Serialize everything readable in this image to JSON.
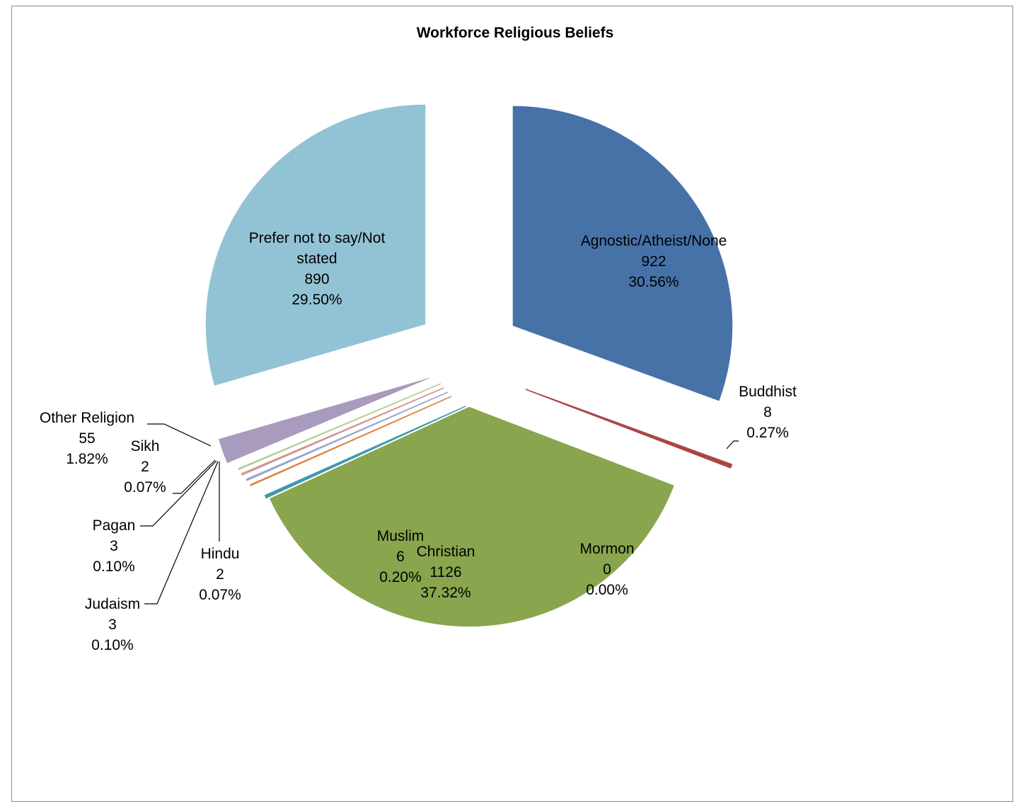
{
  "chart_data": {
    "type": "pie",
    "title": "Workforce Religious Beliefs",
    "exploded": true,
    "slices": [
      {
        "label": "Agnostic/Atheist/None",
        "value": 922,
        "percent": "30.56%",
        "color": "#4672A8"
      },
      {
        "label": "Buddhist",
        "value": 8,
        "percent": "0.27%",
        "color": "#AA4644"
      },
      {
        "label": "Mormon",
        "value": 0,
        "percent": "0.00%",
        "color": "#8064A1"
      },
      {
        "label": "Christian",
        "value": 1126,
        "percent": "37.32%",
        "color": "#89A54E"
      },
      {
        "label": "Muslim",
        "value": 6,
        "percent": "0.20%",
        "color": "#4198AF"
      },
      {
        "label": "Hindu",
        "value": 2,
        "percent": "0.07%",
        "color": "#DB843D"
      },
      {
        "label": "Judaism",
        "value": 3,
        "percent": "0.10%",
        "color": "#93A9CF"
      },
      {
        "label": "Pagan",
        "value": 3,
        "percent": "0.10%",
        "color": "#D19392"
      },
      {
        "label": "Sikh",
        "value": 2,
        "percent": "0.07%",
        "color": "#B9CD96"
      },
      {
        "label": "Other Religion",
        "value": 55,
        "percent": "1.82%",
        "color": "#A99BBD"
      },
      {
        "label": "Prefer not to say/Not stated",
        "value": 890,
        "percent": "29.50%",
        "color": "#92C3D4"
      }
    ]
  }
}
